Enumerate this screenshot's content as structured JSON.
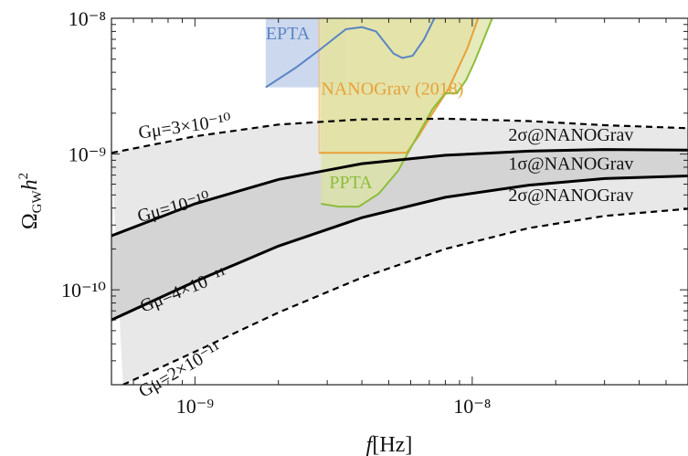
{
  "chart_data": {
    "type": "line",
    "title": "",
    "xlabel": "f[Hz]",
    "ylabel": "ΩGWh²",
    "xscale": "log",
    "yscale": "log",
    "xlim": [
      5e-10,
      6e-08
    ],
    "ylim": [
      2e-11,
      1e-08
    ],
    "grid": false,
    "legend": "none",
    "x_ticks": [
      {
        "value": 1e-09,
        "label": "10⁻⁹"
      },
      {
        "value": 1e-08,
        "label": "10⁻⁸"
      }
    ],
    "y_ticks": [
      {
        "value": 1e-08,
        "label": "10⁻⁸"
      },
      {
        "value": 1e-09,
        "label": "10⁻⁹"
      },
      {
        "value": 1e-10,
        "label": "10⁻¹⁰"
      }
    ],
    "string_curves": [
      {
        "label": "Gμ=3×10⁻¹⁰",
        "style": "dashed",
        "points": [
          [
            5e-10,
            1.02e-09
          ],
          [
            1e-09,
            1.35e-09
          ],
          [
            2e-09,
            1.65e-09
          ],
          [
            4e-09,
            1.8e-09
          ],
          [
            8e-09,
            1.82e-09
          ],
          [
            1.6e-08,
            1.75e-09
          ],
          [
            3e-08,
            1.63e-09
          ],
          [
            6e-08,
            1.55e-09
          ]
        ]
      },
      {
        "label": "Gμ=10⁻¹⁰",
        "style": "solid",
        "points": [
          [
            5e-10,
            2.5e-10
          ],
          [
            1e-09,
            4.3e-10
          ],
          [
            2e-09,
            6.5e-10
          ],
          [
            4e-09,
            8.5e-10
          ],
          [
            8e-09,
            9.8e-10
          ],
          [
            1.6e-08,
            1.05e-09
          ],
          [
            3e-08,
            1.08e-09
          ],
          [
            6e-08,
            1.07e-09
          ]
        ]
      },
      {
        "label": "Gμ=4×10⁻¹¹",
        "style": "solid",
        "points": [
          [
            5e-10,
            6e-11
          ],
          [
            1e-09,
            1.15e-10
          ],
          [
            2e-09,
            2.1e-10
          ],
          [
            4e-09,
            3.4e-10
          ],
          [
            8e-09,
            4.8e-10
          ],
          [
            1.6e-08,
            5.9e-10
          ],
          [
            3e-08,
            6.6e-10
          ],
          [
            6e-08,
            6.9e-10
          ]
        ]
      },
      {
        "label": "Gμ=2×10⁻¹¹",
        "style": "dashed",
        "points": [
          [
            5.5e-10,
            2e-11
          ],
          [
            1e-09,
            3.5e-11
          ],
          [
            2e-09,
            6.8e-11
          ],
          [
            4e-09,
            1.23e-10
          ],
          [
            8e-09,
            2e-10
          ],
          [
            1.6e-08,
            2.85e-10
          ],
          [
            3e-08,
            3.5e-10
          ],
          [
            6e-08,
            3.95e-10
          ]
        ]
      }
    ],
    "bands": [
      {
        "label": "2σ@NANOGrav",
        "between": [
          0,
          3
        ],
        "color": "#e8e8e8"
      },
      {
        "label": "1σ@NANOGrav",
        "between": [
          1,
          2
        ],
        "color": "#d4d4d4"
      }
    ],
    "band_labels": [
      {
        "text": "2σ@NANOGrav",
        "x": 1.35e-08,
        "y": 1.25e-09
      },
      {
        "text": "1σ@NANOGrav",
        "x": 1.35e-08,
        "y": 7.7e-10
      },
      {
        "text": "2σ@NANOGrav",
        "x": 1.35e-08,
        "y": 4.5e-10
      }
    ],
    "pta_regions": [
      {
        "label": "EPTA",
        "color": "#5b85c4",
        "fill": "#c7d4ec",
        "boundary": [
          [
            1.8e-09,
            3.1e-09
          ],
          [
            2.3e-09,
            4.3e-09
          ],
          [
            2.8e-09,
            5.8e-09
          ],
          [
            3.5e-09,
            8.3e-09
          ],
          [
            4e-09,
            8.6e-09
          ],
          [
            4.5e-09,
            8e-09
          ],
          [
            5.2e-09,
            5.5e-09
          ],
          [
            5.6e-09,
            5.1e-09
          ],
          [
            6.1e-09,
            5.3e-09
          ],
          [
            6.7e-09,
            7e-09
          ],
          [
            7.3e-09,
            1e-08
          ]
        ],
        "fill_x": [
          1.8e-09,
          3.5e-09
        ],
        "label_pos": [
          1.8e-09,
          7e-09
        ]
      },
      {
        "label": "NANOGrav (2018)",
        "color": "#e8a13a",
        "fill": "#f5d9ae",
        "boundary": [
          [
            2.8e-09,
            1.02e-09
          ],
          [
            5.8e-09,
            1.02e-09
          ],
          [
            6.4e-09,
            1.35e-09
          ],
          [
            7.2e-09,
            2e-09
          ],
          [
            8.2e-09,
            3e-09
          ],
          [
            9.6e-09,
            6e-09
          ],
          [
            1.05e-08,
            1e-08
          ]
        ],
        "vertical_edge_x": 2.8e-09,
        "label_pos": [
          2.85e-09,
          2.75e-09
        ]
      },
      {
        "label": "PPTA",
        "color": "#8dbd3c",
        "fill": "#dce4a4",
        "boundary": [
          [
            2.85e-09,
            4.3e-10
          ],
          [
            3.3e-09,
            4.1e-10
          ],
          [
            3.9e-09,
            4.1e-10
          ],
          [
            4.6e-09,
            5.1e-10
          ],
          [
            5.4e-09,
            7.5e-10
          ],
          [
            6.2e-09,
            1.25e-09
          ],
          [
            7.2e-09,
            2.15e-09
          ],
          [
            8e-09,
            2.8e-09
          ],
          [
            8.8e-09,
            2.8e-09
          ],
          [
            9.5e-09,
            3.5e-09
          ],
          [
            1.02e-08,
            4.8e-09
          ],
          [
            1.1e-08,
            7e-09
          ],
          [
            1.18e-08,
            1e-08
          ]
        ],
        "label_pos": [
          3.05e-09,
          5.6e-10
        ]
      }
    ]
  }
}
